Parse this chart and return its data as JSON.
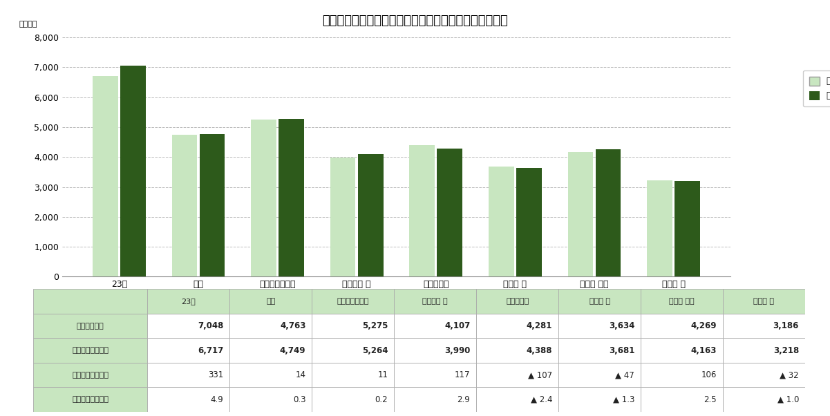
{
  "title": "＜図表１＞　首都圏８エリアの平均価格（前年同月比）",
  "ylabel": "（万円）",
  "categories": [
    "23区",
    "都下",
    "横浜市・川崎市",
    "神奈川県 他",
    "さいたま市",
    "埼玉県 他",
    "千葉県 西部",
    "千葉県 他"
  ],
  "current_month": [
    7048,
    4763,
    5275,
    4107,
    4281,
    3634,
    4269,
    3186
  ],
  "prev_year": [
    6717,
    4749,
    5264,
    3990,
    4388,
    3681,
    4163,
    3218
  ],
  "color_prev": "#c8e6c0",
  "color_curr": "#2d5a1b",
  "ylim": [
    0,
    8000
  ],
  "yticks": [
    0,
    1000,
    2000,
    3000,
    4000,
    5000,
    6000,
    7000,
    8000
  ],
  "legend_prev": "前年同月",
  "legend_curr": "当月",
  "table_row_labels": [
    "当月（万円）",
    "前年同月（万円）",
    "前年差額（万円）",
    "前年同月比（％）"
  ],
  "table_data": [
    [
      "7,048",
      "4,763",
      "5,275",
      "4,107",
      "4,281",
      "3,634",
      "4,269",
      "3,186"
    ],
    [
      "6,717",
      "4,749",
      "5,264",
      "3,990",
      "4,388",
      "3,681",
      "4,163",
      "3,218"
    ],
    [
      "331",
      "14",
      "11",
      "117",
      "▲ 107",
      "▲ 47",
      "106",
      "▲ 32"
    ],
    [
      "4.9",
      "0.3",
      "0.2",
      "2.9",
      "▲ 2.4",
      "▲ 1.3",
      "2.5",
      "▲ 1.0"
    ]
  ],
  "table_header": [
    "23区",
    "都下",
    "横浜市・川崎市",
    "神奈川県 他",
    "さいたま市",
    "埼玉県 他",
    "千葉県 西部",
    "千葉県 他"
  ],
  "bg_color": "#ffffff",
  "table_header_bg": "#c8e6c0",
  "table_row_label_bg": "#c8e6c0",
  "table_cell_bg_alt": "#ffffff",
  "table_border_color": "#aaaaaa",
  "grid_color": "#bbbbbb",
  "negative_rows": [
    2,
    3
  ],
  "bold_rows": [
    0,
    1
  ]
}
